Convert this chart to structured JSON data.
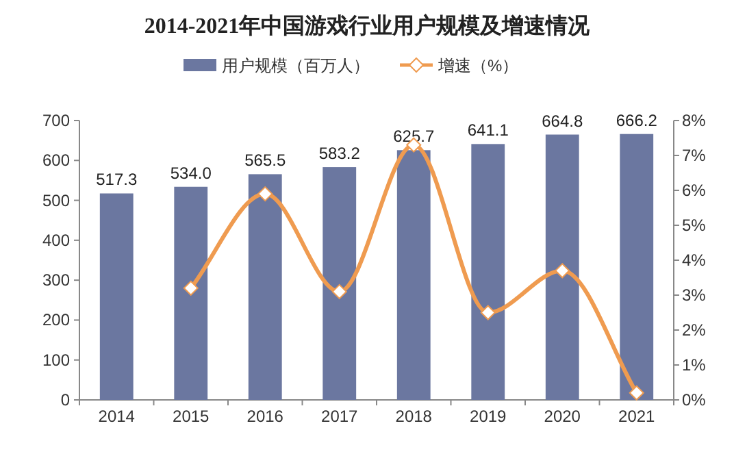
{
  "chart_data": {
    "type": "bar",
    "title": "2014-2021年中国游戏行业用户规模及增速情况",
    "categories": [
      "2014",
      "2015",
      "2016",
      "2017",
      "2018",
      "2019",
      "2020",
      "2021"
    ],
    "series": [
      {
        "name": "用户规模（百万人）",
        "color": "#6b77a0",
        "values": [
          517.3,
          534.0,
          565.5,
          583.2,
          625.7,
          641.1,
          664.8,
          666.2
        ],
        "value_labels": [
          "517.3",
          "534.0",
          "565.5",
          "583.2",
          "625.7",
          "641.1",
          "664.8",
          "666.2"
        ]
      },
      {
        "name": "增速（%）",
        "type": "line",
        "axis": "y2",
        "color": "#ef9b50",
        "marker": "diamond",
        "values": [
          null,
          3.2,
          5.9,
          3.1,
          7.3,
          2.5,
          3.7,
          0.2
        ]
      }
    ],
    "ylim": [
      0,
      700
    ],
    "yticks": [
      0,
      100,
      200,
      300,
      400,
      500,
      600,
      700
    ],
    "y2lim": [
      0,
      8
    ],
    "y2ticks": [
      {
        "value": 0,
        "label": "0%"
      },
      {
        "value": 1,
        "label": "1%"
      },
      {
        "value": 2,
        "label": "2%"
      },
      {
        "value": 3,
        "label": "3%"
      },
      {
        "value": 4,
        "label": "4%"
      },
      {
        "value": 5,
        "label": "5%"
      },
      {
        "value": 6,
        "label": "6%"
      },
      {
        "value": 7,
        "label": "7%"
      },
      {
        "value": 8,
        "label": "8%"
      }
    ],
    "grid": false,
    "legend": "top"
  }
}
